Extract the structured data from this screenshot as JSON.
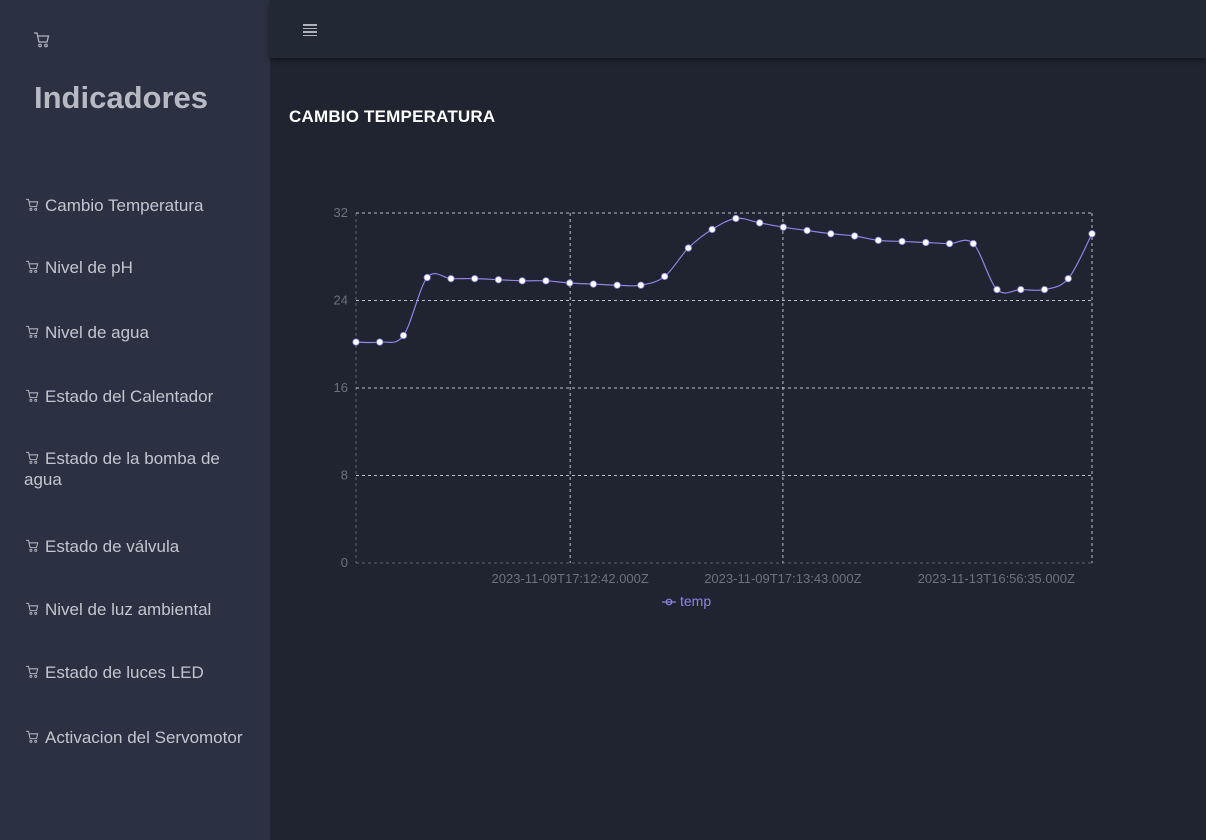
{
  "sidebar": {
    "brand": "Indicadores",
    "logo_icon": "cart-icon",
    "items": [
      {
        "label": "Cambio Temperatura",
        "icon": "cart-icon"
      },
      {
        "label": "Nivel de pH",
        "icon": "cart-icon"
      },
      {
        "label": "Nivel de agua",
        "icon": "cart-icon"
      },
      {
        "label": "Estado del Calentador",
        "icon": "cart-icon"
      },
      {
        "label": "Estado de la bomba de agua",
        "icon": "cart-icon"
      },
      {
        "label": "Estado de válvula",
        "icon": "cart-icon"
      },
      {
        "label": "Nivel de luz ambiental",
        "icon": "cart-icon"
      },
      {
        "label": "Estado de luces LED",
        "icon": "cart-icon"
      },
      {
        "label": "Activacion del Servomotor",
        "icon": "cart-icon"
      }
    ]
  },
  "topbar": {
    "menu_icon": "hamburger-menu-icon"
  },
  "main": {
    "title": "CAMBIO TEMPERATURA"
  },
  "colors": {
    "background": "#1f2430",
    "sidebar": "#2b3142",
    "line": "#8c86e8",
    "marker": "#ffffff",
    "grid": "#d8dbe2"
  },
  "chart_data": {
    "type": "line",
    "xlabel": "",
    "ylabel": "",
    "ylim": [
      0,
      32
    ],
    "yticks": [
      0,
      8,
      16,
      24,
      32
    ],
    "xtick_labels": [
      "2023-11-09T17:12:42.000Z",
      "2023-11-09T17:13:43.000Z",
      "2023-11-13T16:56:35.000Z"
    ],
    "grid": true,
    "legend": "bottom",
    "series": [
      {
        "name": "temp",
        "values": [
          20.2,
          20.2,
          20.8,
          26.1,
          26.0,
          26.0,
          25.9,
          25.8,
          25.8,
          25.6,
          25.5,
          25.4,
          25.4,
          26.2,
          28.8,
          30.5,
          31.5,
          31.1,
          30.7,
          30.4,
          30.1,
          29.9,
          29.5,
          29.4,
          29.3,
          29.2,
          29.2,
          25.0,
          25.0,
          25.0,
          26.0,
          30.1
        ]
      }
    ]
  }
}
